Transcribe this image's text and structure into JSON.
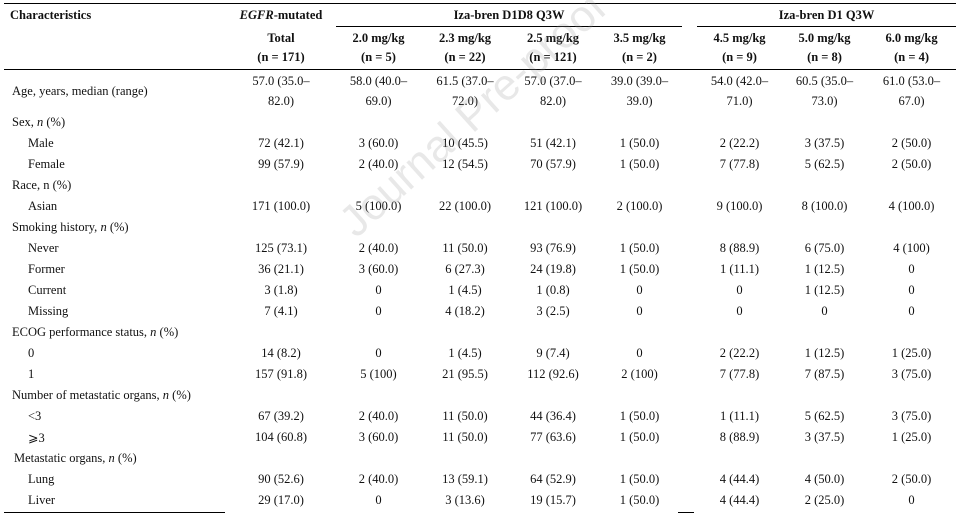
{
  "header": {
    "characteristics": "Characteristics",
    "egfr_prefix": "EGFR",
    "egfr_suffix": "-mutated",
    "total_label": "Total",
    "total_n": "(n = 171)",
    "group1_title": "Iza-bren D1D8 Q3W",
    "group2_title": "Iza-bren D1 Q3W",
    "doses": [
      {
        "dose": "2.0 mg/kg",
        "n": "(n = 5)"
      },
      {
        "dose": "2.3 mg/kg",
        "n": "(n = 22)"
      },
      {
        "dose": "2.5 mg/kg",
        "n": "(n = 121)"
      },
      {
        "dose": "3.5 mg/kg",
        "n": "(n = 2)"
      },
      {
        "dose": "4.5 mg/kg",
        "n": "(n = 9)"
      },
      {
        "dose": "5.0 mg/kg",
        "n": "(n = 8)"
      },
      {
        "dose": "6.0 mg/kg",
        "n": "(n = 4)"
      }
    ]
  },
  "rows": {
    "age": {
      "label": "Age, years, median (range)",
      "line1": [
        "57.0 (35.0–",
        "58.0 (40.0–",
        "61.5 (37.0–",
        "57.0 (37.0–",
        "39.0 (39.0–",
        "54.0 (42.0–",
        "60.5 (35.0–",
        "61.0 (53.0–"
      ],
      "line2": [
        "82.0)",
        "69.0)",
        "72.0)",
        "82.0)",
        "39.0)",
        "71.0)",
        "73.0)",
        "67.0)"
      ]
    },
    "sex": {
      "label": "Sex, ",
      "suffix": "(%)"
    },
    "male": {
      "label": "Male",
      "vals": [
        "72 (42.1)",
        "3 (60.0)",
        "10 (45.5)",
        "51 (42.1)",
        "1 (50.0)",
        "2 (22.2)",
        "3 (37.5)",
        "2 (50.0)"
      ]
    },
    "female": {
      "label": "Female",
      "vals": [
        "99 (57.9)",
        "2 (40.0)",
        "12 (54.5)",
        "70 (57.9)",
        "1 (50.0)",
        "7 (77.8)",
        "5 (62.5)",
        "2 (50.0)"
      ]
    },
    "race": {
      "label": "Race, n (%)"
    },
    "asian": {
      "label": "Asian",
      "vals": [
        "171 (100.0)",
        "5 (100.0)",
        "22 (100.0)",
        "121 (100.0)",
        "2 (100.0)",
        "9 (100.0)",
        "8 (100.0)",
        "4 (100.0)"
      ]
    },
    "smoking": {
      "label": "Smoking history, ",
      "suffix": "(%)"
    },
    "never": {
      "label": "Never",
      "vals": [
        "125 (73.1)",
        "2 (40.0)",
        "11 (50.0)",
        "93 (76.9)",
        "1 (50.0)",
        "8 (88.9)",
        "6 (75.0)",
        "4 (100)"
      ]
    },
    "former": {
      "label": "Former",
      "vals": [
        "36 (21.1)",
        "3 (60.0)",
        "6 (27.3)",
        "24 (19.8)",
        "1 (50.0)",
        "1 (11.1)",
        "1 (12.5)",
        "0"
      ]
    },
    "current": {
      "label": "Current",
      "vals": [
        "3 (1.8)",
        "0",
        "1 (4.5)",
        "1 (0.8)",
        "0",
        "0",
        "1 (12.5)",
        "0"
      ]
    },
    "missing": {
      "label": "Missing",
      "vals": [
        "7 (4.1)",
        "0",
        "4 (18.2)",
        "3 (2.5)",
        "0",
        "0",
        "0",
        "0"
      ]
    },
    "ecog": {
      "label": "ECOG performance status, ",
      "suffix": "(%)"
    },
    "ecog0": {
      "label": "0",
      "vals": [
        "14 (8.2)",
        "0",
        "1 (4.5)",
        "9 (7.4)",
        "0",
        "2 (22.2)",
        "1 (12.5)",
        "1 (25.0)"
      ]
    },
    "ecog1": {
      "label": "1",
      "vals": [
        "157 (91.8)",
        "5 (100)",
        "21 (95.5)",
        "112 (92.6)",
        "2 (100)",
        "7 (77.8)",
        "7 (87.5)",
        "3 (75.0)"
      ]
    },
    "metnum": {
      "label": "Number of metastatic organs, ",
      "suffix": "(%)"
    },
    "lt3": {
      "label": "<3",
      "vals": [
        "67 (39.2)",
        "2 (40.0)",
        "11 (50.0)",
        "44 (36.4)",
        "1 (50.0)",
        "1 (11.1)",
        "5 (62.5)",
        "3 (75.0)"
      ]
    },
    "ge3": {
      "label": "⩾3",
      "vals": [
        "104 (60.8)",
        "3 (60.0)",
        "11 (50.0)",
        "77 (63.6)",
        "1 (50.0)",
        "8 (88.9)",
        "3 (37.5)",
        "1 (25.0)"
      ]
    },
    "metorg": {
      "label": "Metastatic organs, ",
      "suffix": "(%)"
    },
    "lung": {
      "label": "Lung",
      "vals": [
        "90 (52.6)",
        "2 (40.0)",
        "13 (59.1)",
        "64 (52.9)",
        "1 (50.0)",
        "4 (44.4)",
        "4 (50.0)",
        "2 (50.0)"
      ]
    },
    "liver": {
      "label": "Liver",
      "vals": [
        "29 (17.0)",
        "0",
        "3 (13.6)",
        "19 (15.7)",
        "1 (50.0)",
        "4 (44.4)",
        "2 (25.0)",
        "0"
      ]
    }
  },
  "n_italic": "n",
  "watermark": "Journal Pre-proof"
}
